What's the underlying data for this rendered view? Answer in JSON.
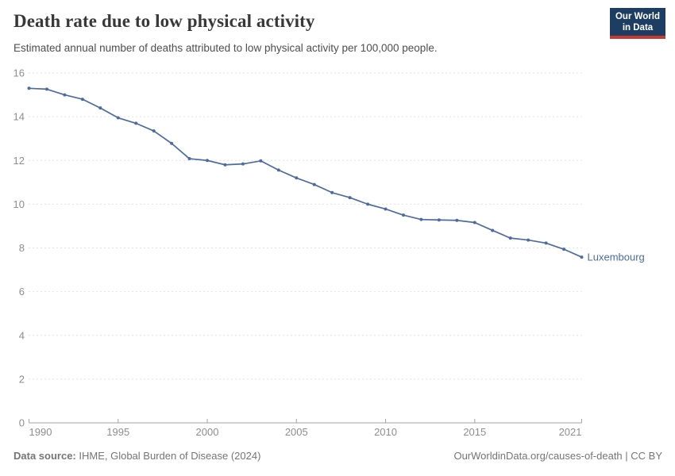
{
  "header": {
    "title": "Death rate due to low physical activity",
    "subtitle": "Estimated annual number of deaths attributed to low physical activity per 100,000 people."
  },
  "logo": {
    "line1": "Our World",
    "line2": "in Data",
    "bg_color": "#1d3d63",
    "bar_color": "#c53a33"
  },
  "chart_data": {
    "type": "line",
    "title": "Death rate due to low physical activity",
    "xlabel": "",
    "ylabel": "",
    "x": [
      1990,
      1991,
      1992,
      1993,
      1994,
      1995,
      1996,
      1997,
      1998,
      1999,
      2000,
      2001,
      2002,
      2003,
      2004,
      2005,
      2006,
      2007,
      2008,
      2009,
      2010,
      2011,
      2012,
      2013,
      2014,
      2015,
      2016,
      2017,
      2018,
      2019,
      2020,
      2021
    ],
    "series": [
      {
        "name": "Luxembourg",
        "color": "#4d6ba3",
        "values": [
          15.3,
          15.26,
          15.0,
          14.8,
          14.4,
          13.95,
          13.7,
          13.35,
          12.78,
          12.08,
          12.0,
          11.8,
          11.84,
          11.98,
          11.56,
          11.2,
          10.9,
          10.53,
          10.3,
          10.0,
          9.78,
          9.5,
          9.3,
          9.28,
          9.26,
          9.16,
          8.8,
          8.45,
          8.36,
          8.22,
          7.94,
          7.58
        ]
      }
    ],
    "ylim": [
      0,
      16
    ],
    "yticks": [
      0,
      2,
      4,
      6,
      8,
      10,
      12,
      14,
      16
    ],
    "xticks": [
      1990,
      1995,
      2000,
      2005,
      2010,
      2015,
      2021
    ],
    "grid": true,
    "legend_position": "line-end",
    "end_label": "Luxembourg",
    "gridline_color": "#e2e2e2",
    "axis_color": "#a3a3a3",
    "tick_label_color": "#8e8e8e"
  },
  "footer": {
    "source_label": "Data source:",
    "source_value": "IHME, Global Burden of Disease (2024)",
    "credit": "OurWorldinData.org/causes-of-death | CC BY"
  }
}
